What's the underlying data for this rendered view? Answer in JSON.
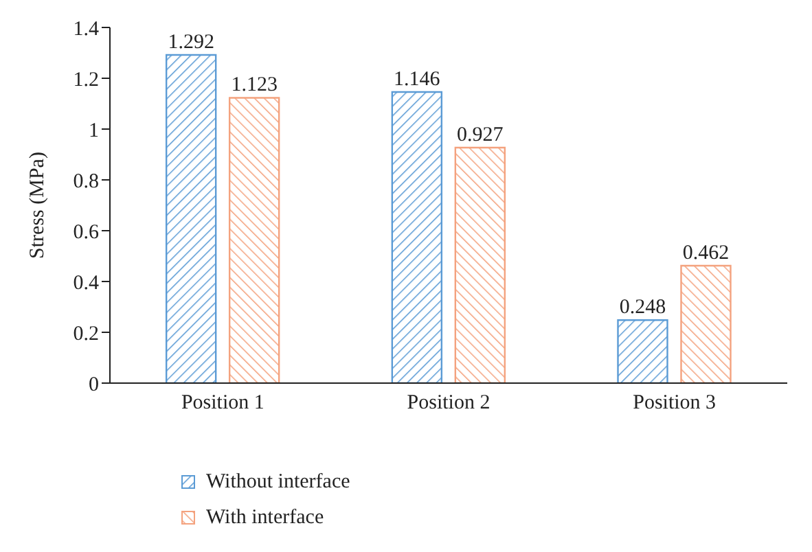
{
  "chart_data": {
    "type": "bar",
    "ylabel": "Stress (MPa)",
    "categories": [
      "Position 1",
      "Position 2",
      "Position 3"
    ],
    "series": [
      {
        "name": "Without interface",
        "color": "#5b9bd5",
        "values": [
          1.292,
          1.146,
          0.248
        ]
      },
      {
        "name": "With interface",
        "color": "#f4a27e",
        "values": [
          1.123,
          0.927,
          0.462
        ]
      }
    ],
    "ylim": [
      0,
      1.4
    ],
    "yticks": [
      0,
      0.2,
      0.4,
      0.6,
      0.8,
      1,
      1.2,
      1.4
    ],
    "grid": false,
    "legend": "bottom left",
    "data_labels": true
  }
}
